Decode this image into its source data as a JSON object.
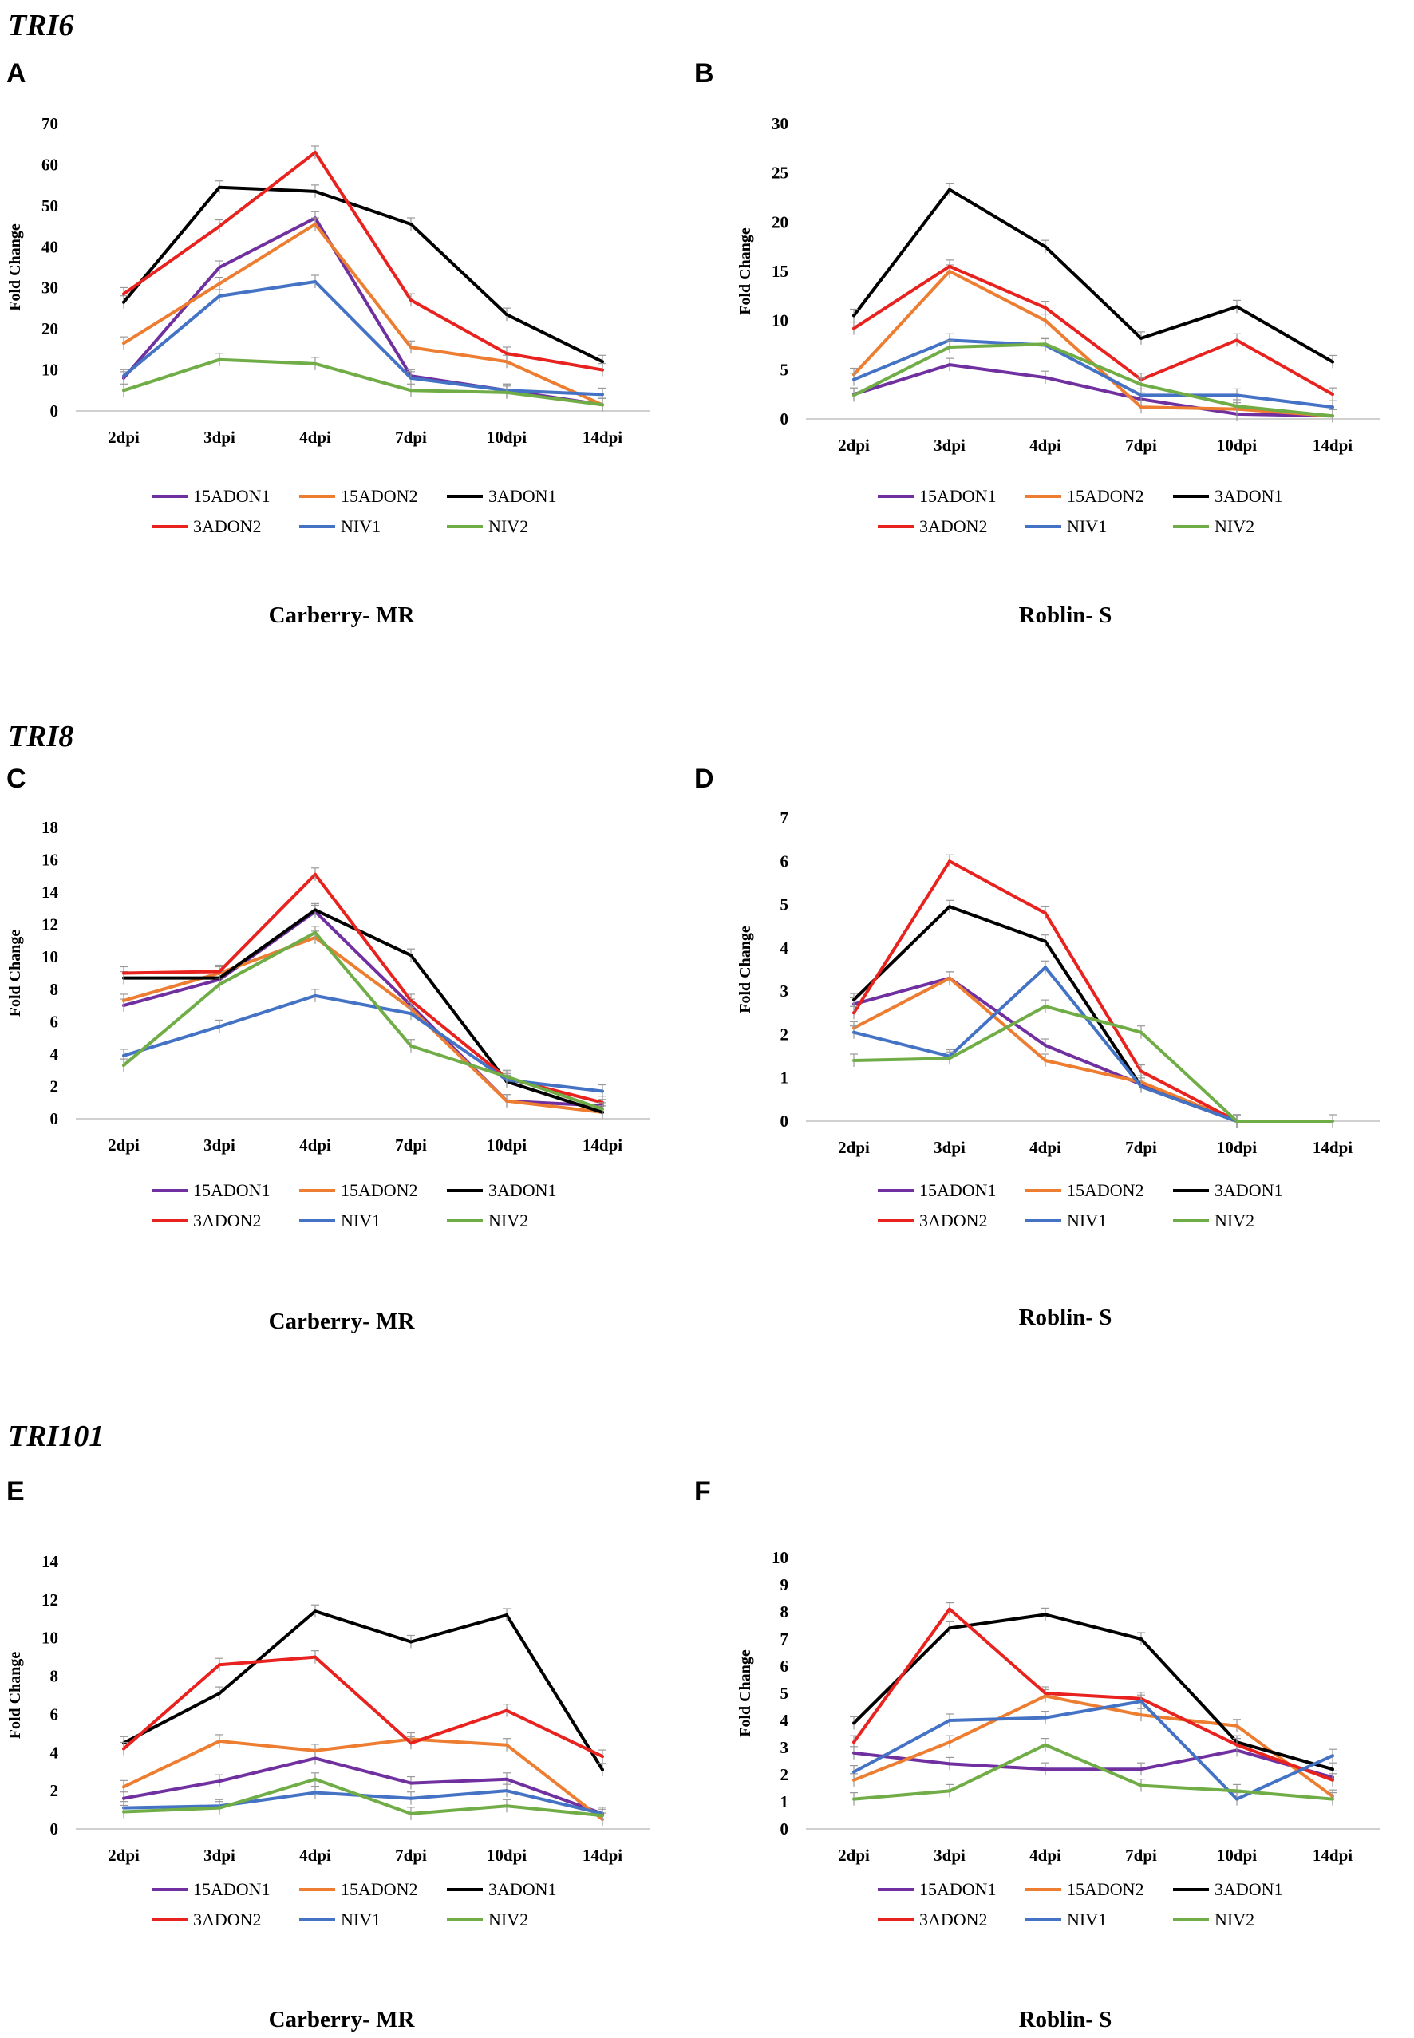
{
  "chart_data": [
    {
      "type": "line",
      "id": "A",
      "panel_label": "A",
      "gene": "TRI6",
      "caption": "Carberry- MR",
      "ylabel": "Fold Change",
      "ylim": [
        0,
        70
      ],
      "yticks": [
        0,
        10,
        20,
        30,
        40,
        50,
        60,
        70
      ],
      "categories": [
        "2dpi",
        "3dpi",
        "4dpi",
        "7dpi",
        "10dpi",
        "14dpi"
      ],
      "series": [
        {
          "name": "15ADON1",
          "color": "#7030a0",
          "values": [
            8,
            35,
            47,
            8.5,
            5,
            1.5
          ]
        },
        {
          "name": "15ADON2",
          "color": "#ed7d31",
          "values": [
            16.5,
            31,
            45.5,
            15.5,
            12,
            1.5
          ]
        },
        {
          "name": "3ADON1",
          "color": "#000000",
          "values": [
            26.5,
            54.5,
            53.5,
            45.5,
            23.5,
            12
          ]
        },
        {
          "name": "3ADON2",
          "color": "#e8231f",
          "values": [
            28.5,
            45,
            63,
            27,
            14,
            10
          ]
        },
        {
          "name": "NIV1",
          "color": "#4472c4",
          "values": [
            8.5,
            28,
            31.5,
            8,
            5,
            4
          ]
        },
        {
          "name": "NIV2",
          "color": "#70ad47",
          "values": [
            5,
            12.5,
            11.5,
            5,
            4.5,
            1.5
          ]
        }
      ]
    },
    {
      "type": "line",
      "id": "B",
      "panel_label": "B",
      "gene": "",
      "caption": "Roblin- S",
      "ylabel": "Fold Change",
      "ylim": [
        0,
        30
      ],
      "yticks": [
        0,
        5,
        10,
        15,
        20,
        25,
        30
      ],
      "categories": [
        "2dpi",
        "3dpi",
        "4dpi",
        "7dpi",
        "10dpi",
        "14dpi"
      ],
      "series": [
        {
          "name": "15ADON1",
          "color": "#7030a0",
          "values": [
            2.5,
            5.5,
            4.2,
            2,
            0.5,
            0.3
          ]
        },
        {
          "name": "15ADON2",
          "color": "#ed7d31",
          "values": [
            4.5,
            15,
            10,
            1.2,
            1,
            0.3
          ]
        },
        {
          "name": "3ADON1",
          "color": "#000000",
          "values": [
            10.5,
            23.3,
            17.5,
            8.2,
            11.4,
            5.8
          ]
        },
        {
          "name": "3ADON2",
          "color": "#e8231f",
          "values": [
            9.2,
            15.5,
            11.3,
            4,
            8,
            2.5
          ]
        },
        {
          "name": "NIV1",
          "color": "#4472c4",
          "values": [
            4,
            8,
            7.5,
            2.4,
            2.4,
            1.2
          ]
        },
        {
          "name": "NIV2",
          "color": "#70ad47",
          "values": [
            2.4,
            7.3,
            7.6,
            3.5,
            1.3,
            0.3
          ]
        }
      ]
    },
    {
      "type": "line",
      "id": "C",
      "panel_label": "C",
      "gene": "TRI8",
      "caption": "Carberry- MR",
      "ylabel": "Fold Change",
      "ylim": [
        0,
        18
      ],
      "yticks": [
        0,
        2,
        4,
        6,
        8,
        10,
        12,
        14,
        16,
        18
      ],
      "categories": [
        "2dpi",
        "3dpi",
        "4dpi",
        "7dpi",
        "10dpi",
        "14dpi"
      ],
      "series": [
        {
          "name": "15ADON1",
          "color": "#7030a0",
          "values": [
            7,
            8.6,
            12.8,
            7,
            1.1,
            0.8
          ]
        },
        {
          "name": "15ADON2",
          "color": "#ed7d31",
          "values": [
            7.3,
            9,
            11.2,
            6.8,
            1.1,
            0.4
          ]
        },
        {
          "name": "3ADON1",
          "color": "#000000",
          "values": [
            8.7,
            8.7,
            12.9,
            10.1,
            2.3,
            0.4
          ]
        },
        {
          "name": "3ADON2",
          "color": "#e8231f",
          "values": [
            9,
            9.1,
            15.1,
            7.3,
            2.5,
            1
          ]
        },
        {
          "name": "NIV1",
          "color": "#4472c4",
          "values": [
            3.9,
            5.7,
            7.6,
            6.5,
            2.4,
            1.7
          ]
        },
        {
          "name": "NIV2",
          "color": "#70ad47",
          "values": [
            3.3,
            8.3,
            11.5,
            4.5,
            2.6,
            0.6
          ]
        }
      ]
    },
    {
      "type": "line",
      "id": "D",
      "panel_label": "D",
      "gene": "",
      "caption": "Roblin- S",
      "ylabel": "Fold Change",
      "ylim": [
        0,
        7
      ],
      "yticks": [
        0,
        1,
        2,
        3,
        4,
        5,
        6,
        7
      ],
      "categories": [
        "2dpi",
        "3dpi",
        "4dpi",
        "7dpi",
        "10dpi",
        "14dpi"
      ],
      "series": [
        {
          "name": "15ADON1",
          "color": "#7030a0",
          "values": [
            2.7,
            3.3,
            1.75,
            0.85,
            0,
            null
          ]
        },
        {
          "name": "15ADON2",
          "color": "#ed7d31",
          "values": [
            2.15,
            3.3,
            1.4,
            0.9,
            0,
            null
          ]
        },
        {
          "name": "3ADON1",
          "color": "#000000",
          "values": [
            2.8,
            4.95,
            4.15,
            0.8,
            0,
            null
          ]
        },
        {
          "name": "3ADON2",
          "color": "#e8231f",
          "values": [
            2.5,
            6,
            4.8,
            1.15,
            0,
            null
          ]
        },
        {
          "name": "NIV1",
          "color": "#4472c4",
          "values": [
            2.05,
            1.5,
            3.55,
            0.8,
            0,
            null
          ]
        },
        {
          "name": "NIV2",
          "color": "#70ad47",
          "values": [
            1.4,
            1.45,
            2.65,
            2.05,
            0,
            0
          ]
        }
      ]
    },
    {
      "type": "line",
      "id": "E",
      "panel_label": "E",
      "gene": "TRI101",
      "caption": "Carberry- MR",
      "ylabel": "Fold Change",
      "ylim": [
        0,
        14
      ],
      "yticks": [
        0,
        2,
        4,
        6,
        8,
        10,
        12,
        14
      ],
      "categories": [
        "2dpi",
        "3dpi",
        "4dpi",
        "7dpi",
        "10dpi",
        "14dpi"
      ],
      "series": [
        {
          "name": "15ADON1",
          "color": "#7030a0",
          "values": [
            1.6,
            2.5,
            3.7,
            2.4,
            2.6,
            0.8
          ]
        },
        {
          "name": "15ADON2",
          "color": "#ed7d31",
          "values": [
            2.2,
            4.6,
            4.1,
            4.7,
            4.4,
            0.5
          ]
        },
        {
          "name": "3ADON1",
          "color": "#000000",
          "values": [
            4.5,
            7.1,
            11.4,
            9.8,
            11.2,
            3.1
          ]
        },
        {
          "name": "3ADON2",
          "color": "#e8231f",
          "values": [
            4.2,
            8.6,
            9,
            4.5,
            6.2,
            3.8
          ]
        },
        {
          "name": "NIV1",
          "color": "#4472c4",
          "values": [
            1.1,
            1.2,
            1.9,
            1.6,
            2,
            0.8
          ]
        },
        {
          "name": "NIV2",
          "color": "#70ad47",
          "values": [
            0.9,
            1.1,
            2.6,
            0.8,
            1.2,
            0.7
          ]
        }
      ]
    },
    {
      "type": "line",
      "id": "F",
      "panel_label": "F",
      "gene": "",
      "caption": "Roblin- S",
      "ylabel": "Fold Change",
      "ylim": [
        0,
        10
      ],
      "yticks": [
        0,
        1,
        2,
        3,
        4,
        5,
        6,
        7,
        8,
        9,
        10
      ],
      "categories": [
        "2dpi",
        "3dpi",
        "4dpi",
        "7dpi",
        "10dpi",
        "14dpi"
      ],
      "series": [
        {
          "name": "15ADON1",
          "color": "#7030a0",
          "values": [
            2.8,
            2.4,
            2.2,
            2.2,
            2.9,
            1.9
          ]
        },
        {
          "name": "15ADON2",
          "color": "#ed7d31",
          "values": [
            1.8,
            3.2,
            4.9,
            4.2,
            3.8,
            1.2
          ]
        },
        {
          "name": "3ADON1",
          "color": "#000000",
          "values": [
            3.9,
            7.4,
            7.9,
            7,
            3.2,
            2.2
          ]
        },
        {
          "name": "3ADON2",
          "color": "#e8231f",
          "values": [
            3.2,
            8.1,
            5,
            4.8,
            3.1,
            1.8
          ]
        },
        {
          "name": "NIV1",
          "color": "#4472c4",
          "values": [
            2.1,
            4,
            4.1,
            4.7,
            1.1,
            2.7
          ]
        },
        {
          "name": "NIV2",
          "color": "#70ad47",
          "values": [
            1.1,
            1.4,
            3.1,
            1.6,
            1.4,
            1.1
          ]
        }
      ]
    }
  ]
}
